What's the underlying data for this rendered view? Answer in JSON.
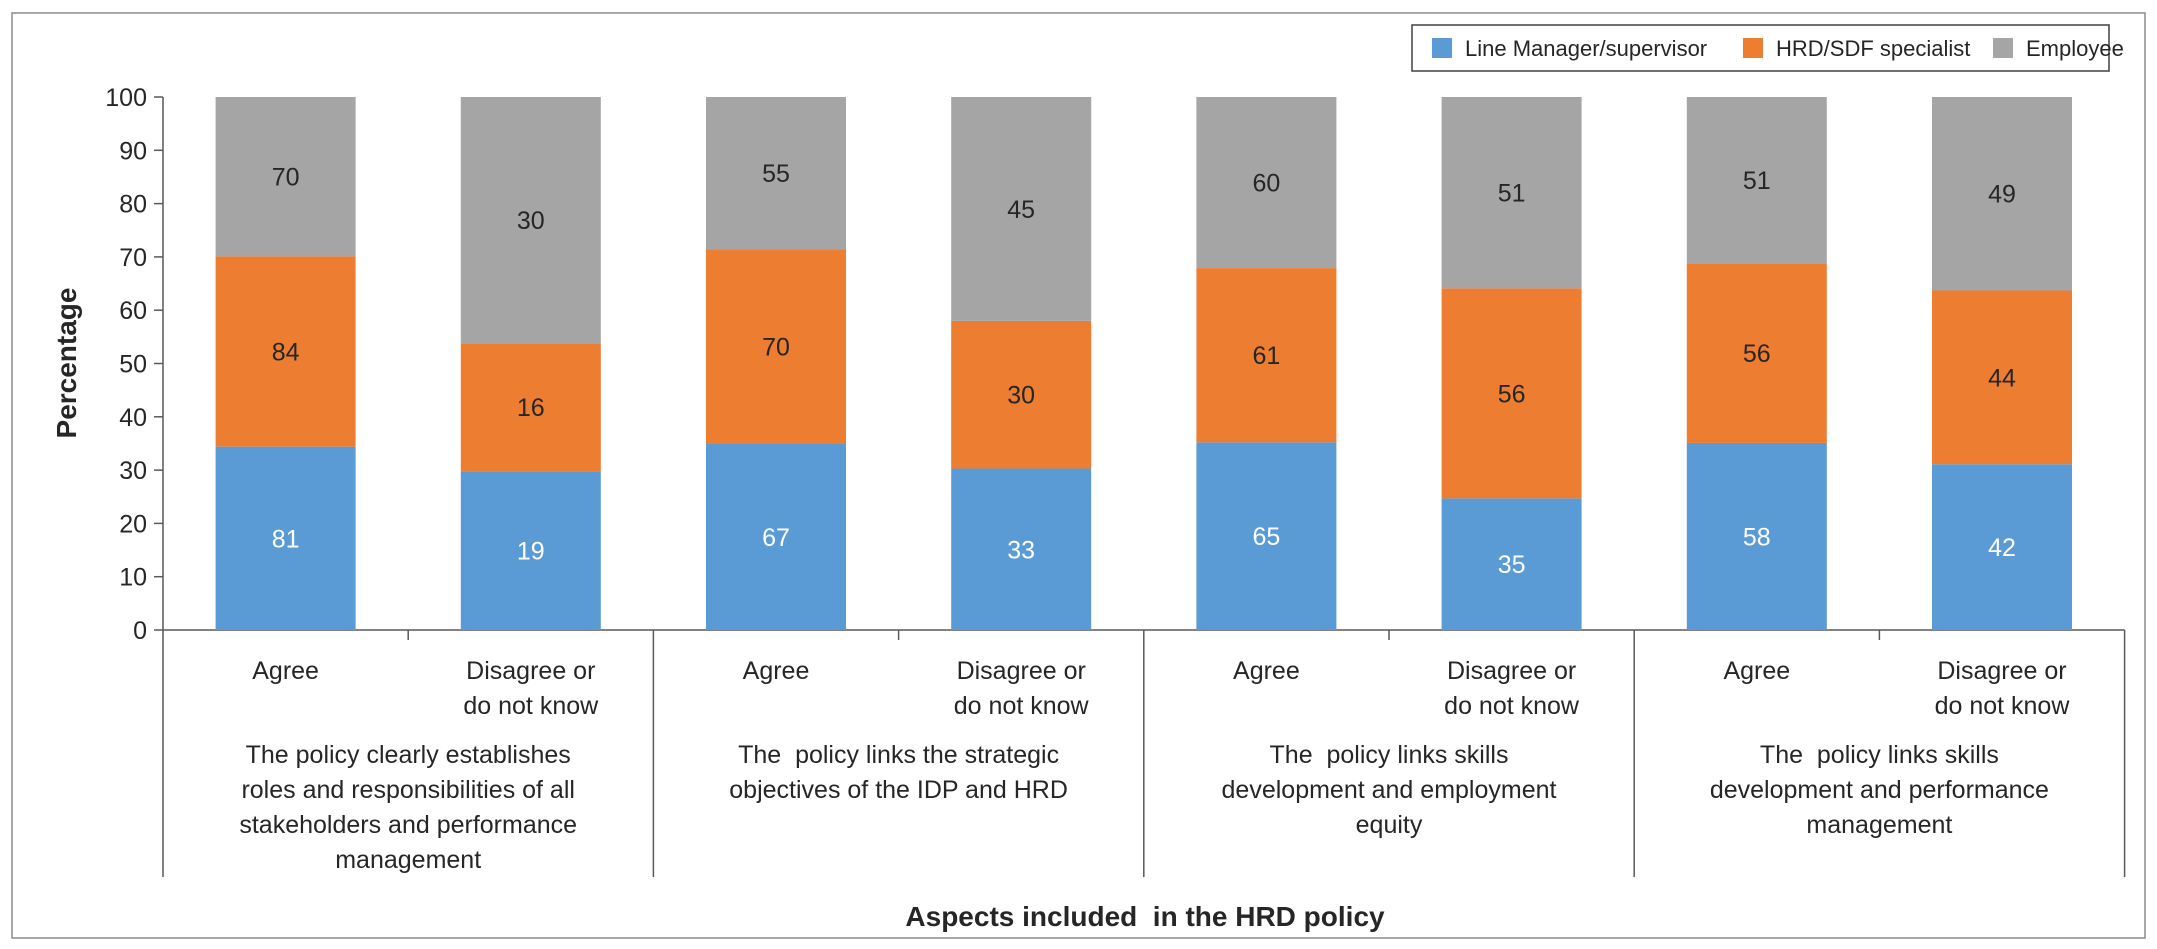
{
  "chart_data": {
    "type": "bar",
    "stacked": true,
    "title": "",
    "xlabel": "Aspects included  in the HRD policy",
    "ylabel": "Percentage",
    "ylim": [
      0,
      100
    ],
    "yticks": [
      0,
      10,
      20,
      30,
      40,
      50,
      60,
      70,
      80,
      90,
      100
    ],
    "legend_position": "top-right",
    "categories": [
      "Agree",
      "Disagree or do not know",
      "Agree",
      "Disagree or do not know",
      "Agree",
      "Disagree or do not know",
      "Agree",
      "Disagree or do not know"
    ],
    "category_lines": [
      [
        "Agree"
      ],
      [
        "Disagree or",
        "do not know"
      ],
      [
        "Agree"
      ],
      [
        "Disagree or",
        "do not know"
      ],
      [
        "Agree"
      ],
      [
        "Disagree or",
        "do not know"
      ],
      [
        "Agree"
      ],
      [
        "Disagree or",
        "do not know"
      ]
    ],
    "groups": [
      {
        "lines": [
          "The policy clearly establishes",
          "roles and responsibilities of all",
          "stakeholders and performance",
          "management"
        ]
      },
      {
        "lines": [
          "The  policy links the strategic",
          "objectives of the IDP and HRD"
        ]
      },
      {
        "lines": [
          "The  policy links skills",
          "development and employment",
          "equity"
        ]
      },
      {
        "lines": [
          "The  policy links skills",
          "development and performance",
          "management"
        ]
      }
    ],
    "series": [
      {
        "name": "Line Manager/supervisor",
        "color": "#5B9BD5",
        "label_color": "#ffffff",
        "segments": [
          34.4,
          29.8,
          34.9,
          30.3,
          35.2,
          24.7,
          35.1,
          31.1
        ],
        "labels": [
          "81",
          "19",
          "67",
          "33",
          "65",
          "35",
          "58",
          "42"
        ]
      },
      {
        "name": "HRD/SDF specialist",
        "color": "#ED7D31",
        "label_color": "#262626",
        "segments": [
          35.7,
          24.0,
          36.5,
          27.7,
          32.7,
          39.4,
          33.7,
          32.6
        ],
        "labels": [
          "84",
          "16",
          "70",
          "30",
          "61",
          "56",
          "56",
          "44"
        ]
      },
      {
        "name": "Employee",
        "color": "#A5A5A5",
        "label_color": "#262626",
        "segments": [
          29.9,
          46.2,
          28.6,
          42.0,
          32.1,
          35.9,
          31.2,
          36.3
        ],
        "labels": [
          "70",
          "30",
          "55",
          "45",
          "60",
          "51",
          "51",
          "49"
        ]
      }
    ]
  }
}
